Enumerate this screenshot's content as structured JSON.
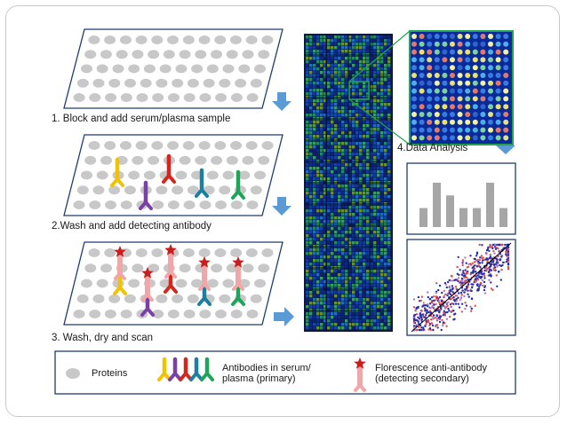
{
  "steps": [
    {
      "label": "1. Block and add serum/plasma sample"
    },
    {
      "label": "2.Wash and add detecting antibody"
    },
    {
      "label": "3. Wash, dry and scan"
    }
  ],
  "analysis": {
    "label": "4.Data Analysis"
  },
  "legend": {
    "proteins": "Proteins",
    "antibodies_line1": "Antibodies in serum/",
    "antibodies_line2": "plasma (primary)",
    "florescence_line1": "Florescence anti-antibody",
    "florescence_line2": "(detecting secondary)"
  },
  "colors": {
    "protein_dot": "#c8c8c8",
    "slide_border": "#1f3d6e",
    "arrow": "#5b9bd5",
    "antibody_yellow": "#f2c200",
    "antibody_purple": "#7b3fa8",
    "antibody_red": "#d6261c",
    "antibody_teal": "#1a7fa0",
    "antibody_green": "#1fa55a",
    "secondary_pink": "#f1a7a7",
    "star_red": "#c81e1e",
    "bar_gray": "#a6a6a6",
    "highlight_green": "#22a350"
  },
  "bar_chart": {
    "values": [
      3,
      7,
      5,
      3,
      3,
      7,
      3
    ]
  },
  "icons": [
    "down-arrow-icon",
    "right-arrow-icon",
    "protein-dot-icon",
    "antibody-y-icon",
    "fluorescent-star-icon"
  ]
}
